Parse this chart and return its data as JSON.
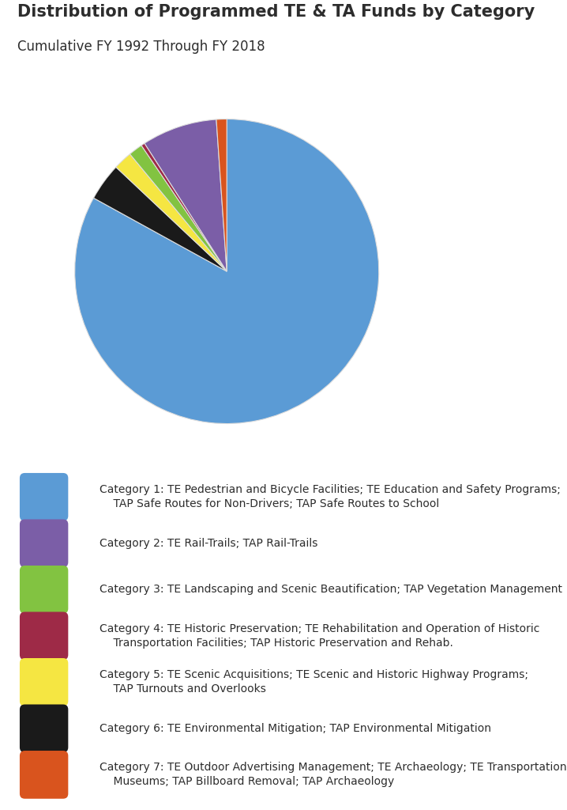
{
  "title": "Distribution of Programmed TE & TA Funds by Category",
  "subtitle": "Cumulative FY 1992 Through FY 2018",
  "background_color": "#ffffff",
  "pie_values": [
    83.0,
    4.0,
    2.0,
    1.5,
    0.4,
    8.0,
    1.1
  ],
  "pie_colors": [
    "#5b9bd5",
    "#1a1a1a",
    "#f5e642",
    "#82c341",
    "#9e2a47",
    "#7b5ea7",
    "#d9541e"
  ],
  "pie_startangle": 90,
  "legend_items": [
    {
      "color": "#5b9bd5",
      "label": "Category 1: TE Pedestrian and Bicycle Facilities; TE Education and Safety Programs;\n    TAP Safe Routes for Non-Drivers; TAP Safe Routes to School"
    },
    {
      "color": "#7b5ea7",
      "label": "Category 2: TE Rail-Trails; TAP Rail-Trails"
    },
    {
      "color": "#82c341",
      "label": "Category 3: TE Landscaping and Scenic Beautification; TAP Vegetation Management"
    },
    {
      "color": "#9e2a47",
      "label": "Category 4: TE Historic Preservation; TE Rehabilitation and Operation of Historic\n    Transportation Facilities; TAP Historic Preservation and Rehab."
    },
    {
      "color": "#f5e642",
      "label": "Category 5: TE Scenic Acquisitions; TE Scenic and Historic Highway Programs;\n    TAP Turnouts and Overlooks"
    },
    {
      "color": "#1a1a1a",
      "label": "Category 6: TE Environmental Mitigation; TAP Environmental Mitigation"
    },
    {
      "color": "#d9541e",
      "label": "Category 7: TE Outdoor Advertising Management; TE Archaeology; TE Transportation\n    Museums; TAP Billboard Removal; TAP Archaeology"
    }
  ],
  "title_fontsize": 15,
  "subtitle_fontsize": 12,
  "legend_fontsize": 10
}
